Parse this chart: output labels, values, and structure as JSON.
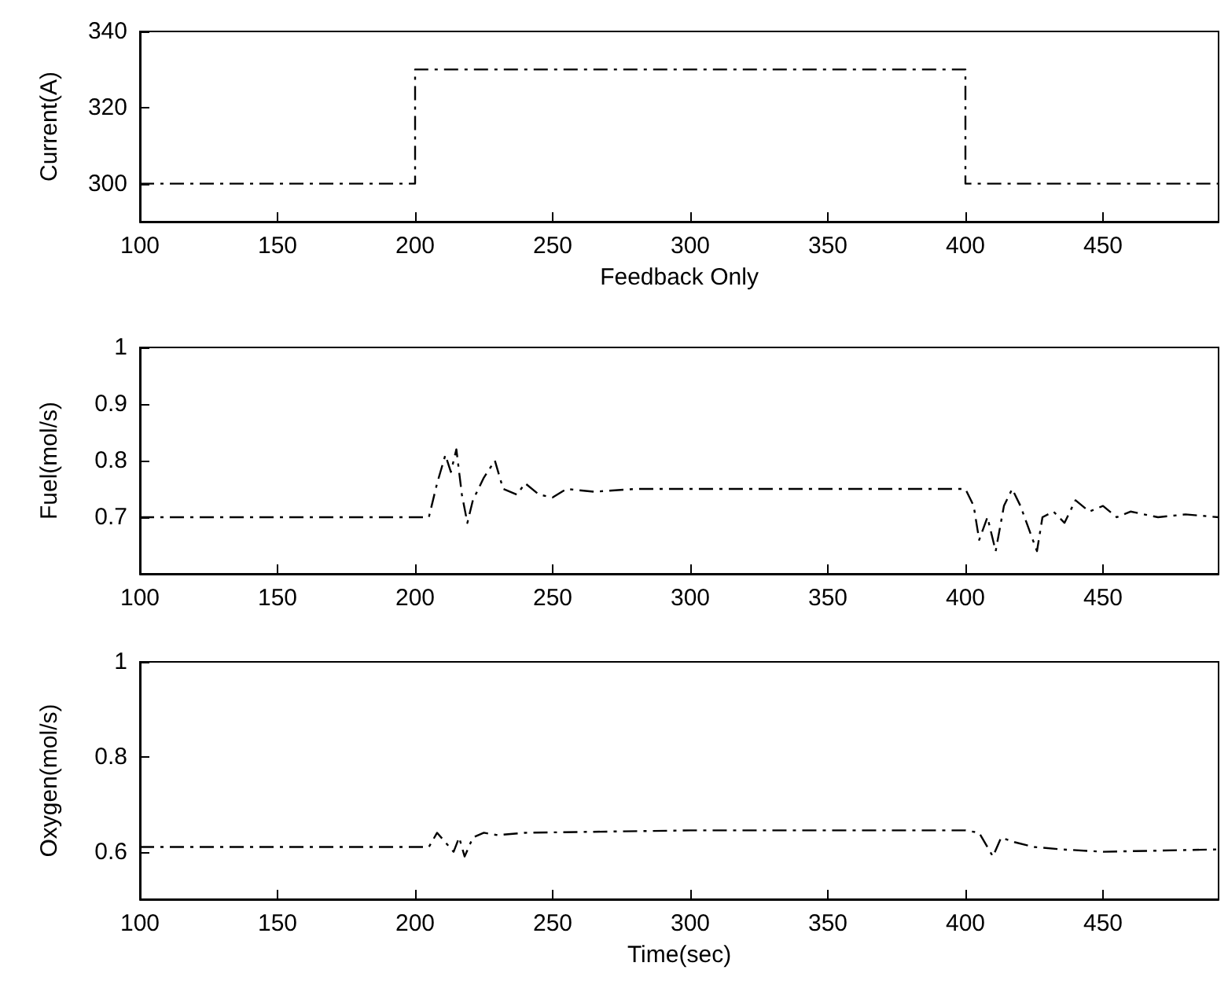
{
  "chart_data": [
    {
      "type": "line",
      "xlabel": "Feedback Only",
      "ylabel": "Current(A)",
      "xlim": [
        100,
        492
      ],
      "xticks": [
        100,
        150,
        200,
        250,
        300,
        350,
        400,
        450
      ],
      "ylim": [
        290,
        340
      ],
      "yticks": [
        300,
        320,
        340
      ],
      "grid": false,
      "line_style": "dashed",
      "series": [
        {
          "color": "#000000",
          "x": [
            100,
            200,
            200,
            400,
            400,
            492
          ],
          "values": [
            300,
            300,
            330,
            330,
            300,
            300
          ]
        }
      ]
    },
    {
      "type": "line",
      "ylabel": "Fuel(mol/s)",
      "xlim": [
        100,
        492
      ],
      "xticks": [
        100,
        150,
        200,
        250,
        300,
        350,
        400,
        450
      ],
      "ylim": [
        0.6,
        1
      ],
      "yticks": [
        0.7,
        0.8,
        0.9,
        1
      ],
      "grid": false,
      "line_style": "dashed",
      "series": [
        {
          "color": "#000000",
          "x": [
            100,
            205,
            208,
            211,
            213,
            215,
            217,
            219,
            221,
            225,
            229,
            232,
            237,
            240,
            245,
            250,
            255,
            265,
            280,
            300,
            400,
            403,
            405,
            408,
            411,
            414,
            417,
            420,
            423,
            426,
            428,
            432,
            436,
            440,
            445,
            450,
            455,
            460,
            470,
            480,
            492
          ],
          "values": [
            0.7,
            0.7,
            0.76,
            0.81,
            0.78,
            0.82,
            0.74,
            0.69,
            0.73,
            0.77,
            0.8,
            0.75,
            0.74,
            0.76,
            0.74,
            0.735,
            0.75,
            0.745,
            0.75,
            0.75,
            0.75,
            0.72,
            0.66,
            0.7,
            0.64,
            0.72,
            0.75,
            0.72,
            0.68,
            0.64,
            0.7,
            0.71,
            0.69,
            0.73,
            0.71,
            0.72,
            0.7,
            0.71,
            0.7,
            0.705,
            0.7
          ]
        }
      ]
    },
    {
      "type": "line",
      "xlabel": "Time(sec)",
      "ylabel": "Oxygen(mol/s)",
      "xlim": [
        100,
        492
      ],
      "xticks": [
        100,
        150,
        200,
        250,
        300,
        350,
        400,
        450
      ],
      "ylim": [
        0.5,
        1
      ],
      "yticks": [
        0.6,
        0.8,
        1
      ],
      "grid": false,
      "line_style": "dashed",
      "series": [
        {
          "color": "#000000",
          "x": [
            100,
            205,
            208,
            211,
            214,
            216,
            218,
            221,
            225,
            230,
            240,
            300,
            400,
            405,
            410,
            413,
            418,
            425,
            435,
            450,
            492
          ],
          "values": [
            0.61,
            0.61,
            0.64,
            0.62,
            0.6,
            0.63,
            0.59,
            0.63,
            0.64,
            0.635,
            0.64,
            0.645,
            0.645,
            0.64,
            0.59,
            0.63,
            0.62,
            0.61,
            0.605,
            0.6,
            0.605
          ]
        }
      ]
    }
  ]
}
